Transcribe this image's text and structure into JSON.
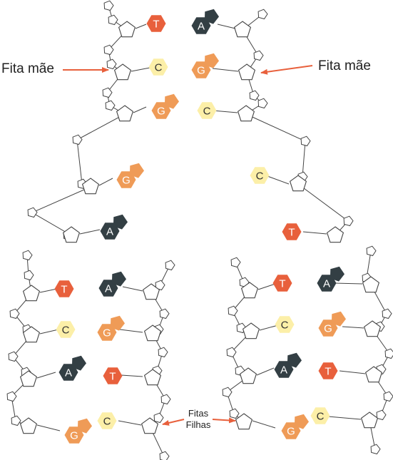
{
  "labels": {
    "parent_strand_left": "Fita mãe",
    "parent_strand_right": "Fita mãe",
    "daughter_strands_line1": "Fitas",
    "daughter_strands_line2": "Filhas"
  },
  "colors": {
    "T": "#e8603c",
    "A": "#333f44",
    "C": "#fcefa8",
    "G": "#ef9b57",
    "backbone": "#444444",
    "arrow": "#e8603c"
  },
  "bases": [
    {
      "letter": "T",
      "type": "single"
    },
    {
      "letter": "A",
      "type": "double"
    },
    {
      "letter": "C",
      "type": "single"
    },
    {
      "letter": "G",
      "type": "double"
    },
    {
      "letter": "G",
      "type": "double"
    },
    {
      "letter": "C",
      "type": "single"
    },
    {
      "letter": "G",
      "type": "double"
    },
    {
      "letter": "C",
      "type": "single"
    },
    {
      "letter": "A",
      "type": "double"
    },
    {
      "letter": "T",
      "type": "single"
    },
    {
      "letter": "T",
      "type": "single"
    },
    {
      "letter": "A",
      "type": "double"
    },
    {
      "letter": "C",
      "type": "single"
    },
    {
      "letter": "G",
      "type": "double"
    },
    {
      "letter": "A",
      "type": "double"
    },
    {
      "letter": "T",
      "type": "single"
    },
    {
      "letter": "G",
      "type": "double"
    },
    {
      "letter": "C",
      "type": "single"
    },
    {
      "letter": "T",
      "type": "single"
    },
    {
      "letter": "A",
      "type": "double"
    },
    {
      "letter": "C",
      "type": "single"
    },
    {
      "letter": "G",
      "type": "double"
    },
    {
      "letter": "A",
      "type": "double"
    },
    {
      "letter": "T",
      "type": "single"
    },
    {
      "letter": "G",
      "type": "double"
    },
    {
      "letter": "C",
      "type": "single"
    }
  ]
}
